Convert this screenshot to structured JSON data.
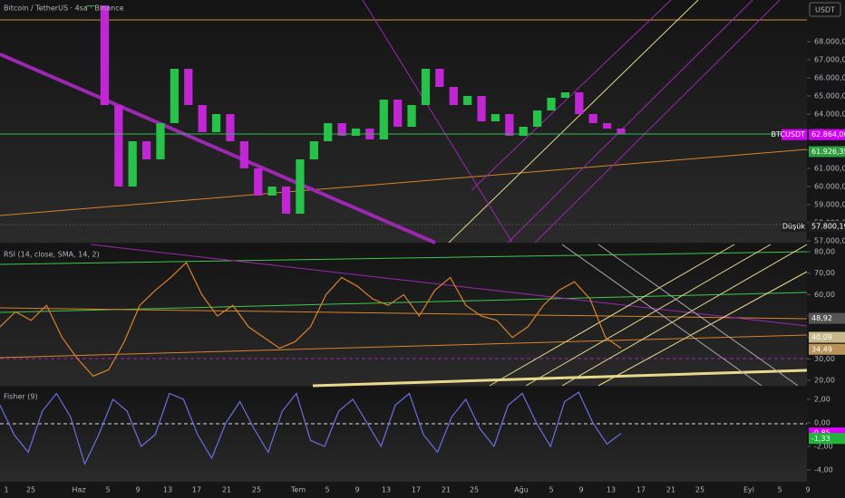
{
  "header": {
    "title": "Bitcoin / TetherUS · 4sa · Binance",
    "currency": "USDT"
  },
  "chart_data": [
    {
      "type": "candlestick",
      "up_color": "#26c24a",
      "down_color": "#c026d3",
      "values": [
        70000,
        64500,
        60000,
        62500,
        61500,
        63500,
        66500,
        64500,
        63000,
        64000,
        62500,
        61000,
        59500,
        60000,
        58500,
        61500,
        62500,
        63500,
        62800,
        63200,
        62600,
        64800,
        63300,
        64500,
        66500,
        65500,
        64500,
        65000,
        63600,
        64000,
        62800,
        63300,
        64200,
        64900,
        65200,
        64000,
        63500,
        63200,
        62900
      ],
      "ylim": [
        56900,
        70300
      ],
      "yticks": [
        {
          "value": 57000,
          "label": "57.000,00"
        },
        {
          "value": 58000,
          "label": "58.000,00"
        },
        {
          "value": 59000,
          "label": "59.000,00"
        },
        {
          "value": 60000,
          "label": "60.000,00"
        },
        {
          "value": 61000,
          "label": "61.000,00"
        },
        {
          "value": 62000,
          "label": "62.000,00"
        },
        {
          "value": 63000,
          "label": "63.000,00"
        },
        {
          "value": 64000,
          "label": "64.000,00"
        },
        {
          "value": 65000,
          "label": "65.000,00"
        },
        {
          "value": 66000,
          "label": "66.000,00"
        },
        {
          "value": 67000,
          "label": "67.000,00"
        },
        {
          "value": 68000,
          "label": "68.000,00"
        }
      ],
      "price_tags": [
        {
          "name": "BTCUSDT",
          "value": 62864,
          "label": "62.864,00",
          "color": "#d500f9"
        },
        {
          "value": 61926.35,
          "label": "61.926,35",
          "color": "#2e9e3e"
        },
        {
          "name": "Düşük",
          "value": 57800.19,
          "label": "57.800,19",
          "color": "#1e1e1e"
        }
      ]
    },
    {
      "type": "line",
      "title": "RSI (14, close, SMA, 14, 2)",
      "color": "#d9822b",
      "values": [
        45,
        52,
        48,
        55,
        40,
        30,
        22,
        25,
        38,
        55,
        62,
        68,
        75,
        60,
        50,
        55,
        45,
        40,
        35,
        38,
        45,
        60,
        68,
        64,
        58,
        55,
        60,
        50,
        62,
        68,
        55,
        50,
        48,
        40,
        45,
        55,
        62,
        66,
        58,
        40,
        35
      ],
      "ylim": [
        17.5,
        83.4
      ],
      "yticks": [
        {
          "value": 20,
          "label": "20,00"
        },
        {
          "value": 30,
          "label": "30,00"
        },
        {
          "value": 40,
          "label": "40,00"
        },
        {
          "value": 50,
          "label": "50,00"
        },
        {
          "value": 60,
          "label": "60,00"
        },
        {
          "value": 70,
          "label": "70,00"
        },
        {
          "value": 80,
          "label": "80,00"
        }
      ],
      "price_tags": [
        {
          "value": 48.92,
          "label": "48,92",
          "color": "#555555"
        },
        {
          "value": 40.09,
          "label": "40,09",
          "color": "#c8b98a"
        },
        {
          "value": 34.49,
          "label": "34,49",
          "color": "#b8935a"
        }
      ]
    },
    {
      "type": "line",
      "title": "Fisher (9)",
      "color": "#6a6fe0",
      "values": [
        1.5,
        -1,
        -2.5,
        1,
        2.5,
        0.5,
        -3.5,
        -1,
        2,
        1,
        -2,
        -1,
        2.5,
        2,
        -1,
        -3,
        0,
        1.8,
        -0.5,
        -2.5,
        1,
        2.5,
        -1.5,
        -2,
        1,
        2,
        0,
        -2,
        1.5,
        2.5,
        -1,
        -2.5,
        0.5,
        2,
        -0.5,
        -2,
        1.5,
        2.5,
        0,
        -2,
        1.8,
        2.6,
        0,
        -1.8,
        -0.9
      ],
      "ylim": [
        -5,
        3
      ],
      "yticks": [
        {
          "value": -4,
          "label": "-4,00"
        },
        {
          "value": -2,
          "label": "-2,00"
        },
        {
          "value": 0,
          "label": "0,00"
        },
        {
          "value": 2,
          "label": "2,00"
        }
      ],
      "price_tags": [
        {
          "value": -0.85,
          "label": "-0,85",
          "color": "#d500f9"
        },
        {
          "value": -1.33,
          "label": "-1,33",
          "color": "#22b43a"
        }
      ]
    }
  ],
  "x_axis_labels": [
    "1",
    "25",
    "Haz",
    "5",
    "9",
    "13",
    "17",
    "21",
    "25",
    "Tem",
    "5",
    "9",
    "13",
    "17",
    "21",
    "25",
    "Ağu",
    "5",
    "9",
    "13",
    "17",
    "21",
    "25",
    "Eyl",
    "5",
    "9"
  ]
}
